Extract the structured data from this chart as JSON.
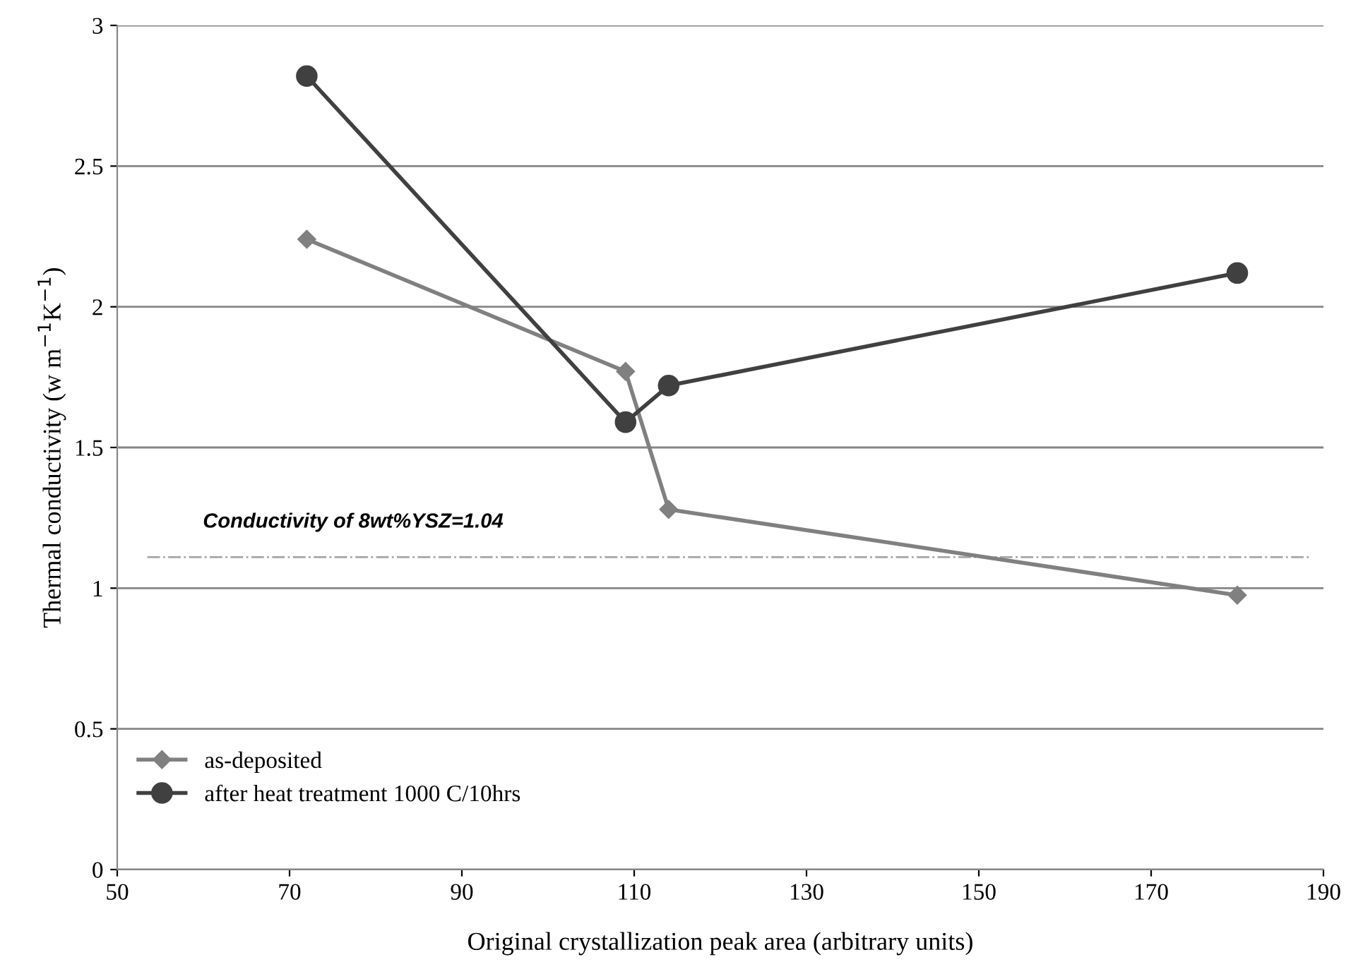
{
  "chart_data": {
    "type": "line",
    "xlabel": "Original crystallization peak area (arbitrary units)",
    "ylabel": "Thermal conductivity (w m$^{−1}$K$^{−1}$)",
    "xlim": [
      50,
      190
    ],
    "xticks": [
      50,
      70,
      90,
      110,
      130,
      150,
      170,
      190
    ],
    "ylim": [
      0,
      3
    ],
    "yticks": [
      0,
      0.5,
      1,
      1.5,
      2,
      2.5,
      3
    ],
    "grid": "y",
    "legend": "bottom left",
    "series": [
      {
        "name": "as-deposited",
        "color": "#808080",
        "marker": "diamond",
        "x": [
          72,
          109,
          114,
          180
        ],
        "values": [
          2.24,
          1.77,
          1.28,
          0.975
        ]
      },
      {
        "name": "after heat treatment 1000 C/10hrs",
        "color": "#404040",
        "marker": "circle",
        "x": [
          72,
          109,
          114,
          180
        ],
        "values": [
          2.82,
          1.59,
          1.72,
          2.12
        ]
      }
    ],
    "annotations": [
      "Conductivity of 8wt%YSZ=1.04"
    ],
    "ref_lines": [
      {
        "axis": "y",
        "value": 1.11,
        "color": "#a6a6a6",
        "line_style": "dashdot"
      }
    ]
  }
}
